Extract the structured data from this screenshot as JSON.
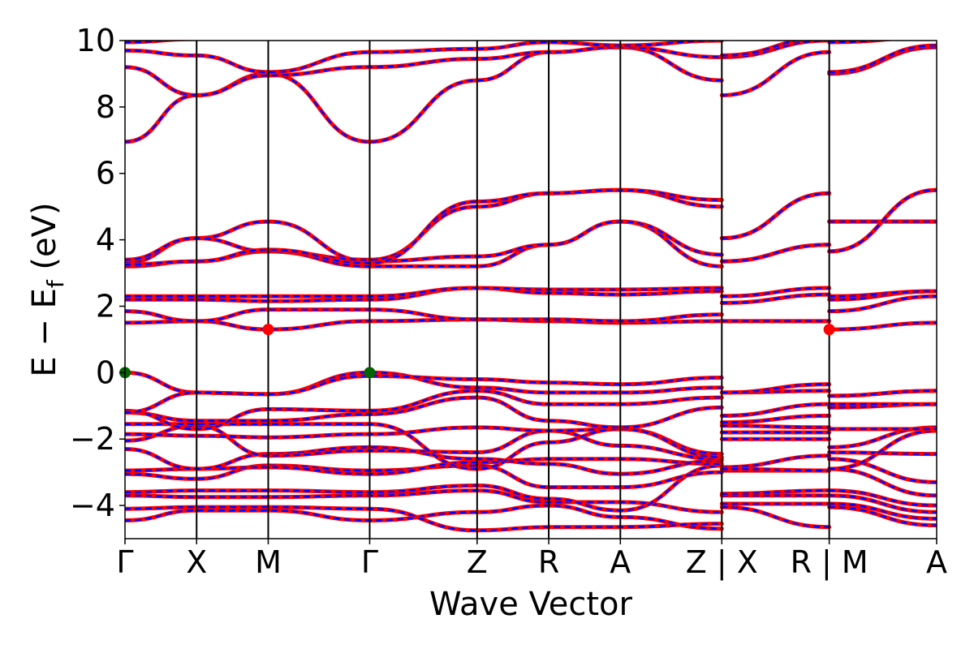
{
  "chart_data": {
    "type": "line",
    "title": "",
    "xlabel": "Wave Vector",
    "ylabel": "E − E",
    "ylabel_subscript": "f",
    "ylabel_unit": "(eV)",
    "ylim": [
      -5,
      10
    ],
    "yticks": [
      {
        "value": 10,
        "label": "10"
      },
      {
        "value": 8,
        "label": "8"
      },
      {
        "value": 6,
        "label": "6"
      },
      {
        "value": 4,
        "label": "4"
      },
      {
        "value": 2,
        "label": "2"
      },
      {
        "value": 0,
        "label": "0"
      },
      {
        "value": -2,
        "label": "−2"
      },
      {
        "value": -4,
        "label": "−4"
      }
    ],
    "kpoints": [
      {
        "x": 0.0,
        "label": "Γ"
      },
      {
        "x": 0.12,
        "label": "X"
      },
      {
        "x": 0.24,
        "label": "M"
      },
      {
        "x": 0.41,
        "label": "Γ"
      },
      {
        "x": 0.59,
        "label": "Z"
      },
      {
        "x": 0.71,
        "label": "R"
      },
      {
        "x": 0.83,
        "label": "A"
      },
      {
        "x": 1.0,
        "label": "Z | X"
      },
      {
        "x": 1.18,
        "label": "R | M"
      },
      {
        "x": 1.36,
        "label": "A"
      }
    ],
    "xlim": [
      0,
      1.36
    ],
    "grid": false,
    "colors": {
      "band_primary": "#ff0000",
      "band_dash": "#0000ff",
      "vbm": "#006400",
      "cbm": "#ff0000"
    },
    "bands": [
      [
        [
          0,
          -4.45
        ],
        [
          0.12,
          -4.15
        ],
        [
          0.24,
          -4.15
        ],
        [
          0.41,
          -4.45
        ],
        [
          0.59,
          -4.2
        ],
        [
          0.71,
          -4.0
        ],
        [
          0.83,
          -4.35
        ],
        [
          1.0,
          -4.7
        ],
        [
          1.0,
          -4.05
        ],
        [
          1.18,
          -4.65
        ],
        [
          1.18,
          -4.05
        ],
        [
          1.36,
          -4.6
        ]
      ],
      [
        [
          0,
          -4.1
        ],
        [
          0.12,
          -4.05
        ],
        [
          0.24,
          -4.05
        ],
        [
          0.41,
          -4.1
        ],
        [
          0.59,
          -4.75
        ],
        [
          0.71,
          -4.65
        ],
        [
          0.83,
          -4.65
        ],
        [
          1.0,
          -4.55
        ],
        [
          1.0,
          -3.95
        ],
        [
          1.18,
          -3.95
        ],
        [
          1.18,
          -3.95
        ],
        [
          1.36,
          -4.4
        ]
      ],
      [
        [
          0,
          -3.7
        ],
        [
          0.12,
          -3.75
        ],
        [
          0.24,
          -3.75
        ],
        [
          0.41,
          -3.7
        ],
        [
          0.59,
          -3.55
        ],
        [
          0.71,
          -3.9
        ],
        [
          0.83,
          -3.9
        ],
        [
          1.0,
          -4.2
        ],
        [
          1.0,
          -3.7
        ],
        [
          1.18,
          -3.7
        ],
        [
          1.18,
          -3.7
        ],
        [
          1.36,
          -4.2
        ]
      ],
      [
        [
          0,
          -3.6
        ],
        [
          0.12,
          -3.55
        ],
        [
          0.24,
          -3.55
        ],
        [
          0.41,
          -3.6
        ],
        [
          0.59,
          -3.4
        ],
        [
          0.71,
          -3.8
        ],
        [
          0.83,
          -4.15
        ],
        [
          1.0,
          -2.8
        ],
        [
          1.0,
          -3.65
        ],
        [
          1.18,
          -3.55
        ],
        [
          1.18,
          -3.55
        ],
        [
          1.36,
          -4.0
        ]
      ],
      [
        [
          0,
          -3.05
        ],
        [
          0.12,
          -3.2
        ],
        [
          0.24,
          -2.8
        ],
        [
          0.41,
          -2.95
        ],
        [
          0.59,
          -2.8
        ],
        [
          0.71,
          -3.45
        ],
        [
          0.83,
          -3.45
        ],
        [
          1.0,
          -3.0
        ],
        [
          1.0,
          -2.95
        ],
        [
          1.18,
          -2.95
        ],
        [
          1.18,
          -2.9
        ],
        [
          1.36,
          -3.7
        ]
      ],
      [
        [
          0,
          -2.95
        ],
        [
          0.12,
          -2.9
        ],
        [
          0.24,
          -2.85
        ],
        [
          0.41,
          -3.05
        ],
        [
          0.59,
          -2.7
        ],
        [
          0.71,
          -2.6
        ],
        [
          0.83,
          -2.6
        ],
        [
          1.0,
          -2.75
        ],
        [
          1.0,
          -2.85
        ],
        [
          1.18,
          -2.5
        ],
        [
          1.18,
          -2.6
        ],
        [
          1.36,
          -3.3
        ]
      ],
      [
        [
          0,
          -2.3
        ],
        [
          0.12,
          -2.9
        ],
        [
          0.24,
          -2.45
        ],
        [
          0.41,
          -2.25
        ],
        [
          0.59,
          -2.6
        ],
        [
          0.71,
          -2.75
        ],
        [
          0.83,
          -3.05
        ],
        [
          1.0,
          -2.65
        ],
        [
          1.0,
          -2.9
        ],
        [
          1.18,
          -2.95
        ],
        [
          1.18,
          -2.4
        ],
        [
          1.36,
          -2.45
        ]
      ],
      [
        [
          0,
          -2.05
        ],
        [
          0.12,
          -1.6
        ],
        [
          0.24,
          -2.5
        ],
        [
          0.41,
          -2.35
        ],
        [
          0.59,
          -2.4
        ],
        [
          0.71,
          -1.75
        ],
        [
          0.83,
          -2.2
        ],
        [
          1.0,
          -2.6
        ],
        [
          1.0,
          -2.0
        ],
        [
          1.18,
          -2.0
        ],
        [
          1.18,
          -2.9
        ],
        [
          1.36,
          -1.75
        ]
      ],
      [
        [
          0,
          -1.85
        ],
        [
          0.12,
          -1.9
        ],
        [
          0.24,
          -1.95
        ],
        [
          0.41,
          -1.85
        ],
        [
          0.59,
          -1.65
        ],
        [
          0.71,
          -1.75
        ],
        [
          0.83,
          -1.7
        ],
        [
          1.0,
          -2.45
        ],
        [
          1.0,
          -1.8
        ],
        [
          1.18,
          -1.8
        ],
        [
          1.18,
          -2.25
        ],
        [
          1.36,
          -1.65
        ]
      ],
      [
        [
          0,
          -1.55
        ],
        [
          0.12,
          -1.55
        ],
        [
          0.24,
          -1.55
        ],
        [
          0.41,
          -1.55
        ],
        [
          0.59,
          -2.9
        ],
        [
          0.71,
          -2.1
        ],
        [
          0.83,
          -1.7
        ],
        [
          1.0,
          -2.55
        ],
        [
          1.0,
          -1.6
        ],
        [
          1.18,
          -1.65
        ],
        [
          1.18,
          -1.7
        ],
        [
          1.36,
          -1.7
        ]
      ],
      [
        [
          0,
          -1.2
        ],
        [
          0.12,
          -1.45
        ],
        [
          0.24,
          -1.45
        ],
        [
          0.41,
          -1.25
        ],
        [
          0.59,
          -0.75
        ],
        [
          0.71,
          -1.45
        ],
        [
          0.83,
          -1.65
        ],
        [
          1.0,
          -1.05
        ],
        [
          1.0,
          -1.5
        ],
        [
          1.18,
          -1.3
        ],
        [
          1.18,
          -1.05
        ],
        [
          1.36,
          -0.95
        ]
      ],
      [
        [
          0,
          -1.15
        ],
        [
          0.12,
          -1.7
        ],
        [
          0.24,
          -1.1
        ],
        [
          0.41,
          -1.15
        ],
        [
          0.59,
          -0.55
        ],
        [
          0.71,
          -0.95
        ],
        [
          0.83,
          -0.95
        ],
        [
          1.0,
          -0.75
        ],
        [
          1.0,
          -1.3
        ],
        [
          1.18,
          -0.95
        ],
        [
          1.18,
          -0.7
        ],
        [
          1.36,
          -0.55
        ]
      ],
      [
        [
          0,
          0.0
        ],
        [
          0.12,
          -0.6
        ],
        [
          0.24,
          -0.65
        ],
        [
          0.41,
          0.0
        ],
        [
          0.59,
          -0.45
        ],
        [
          0.71,
          -0.6
        ],
        [
          0.83,
          -0.6
        ],
        [
          1.0,
          -0.45
        ],
        [
          1.0,
          -0.6
        ],
        [
          1.18,
          -0.55
        ],
        [
          1.18,
          -0.95
        ],
        [
          1.36,
          -0.95
        ]
      ],
      [
        [
          0,
          -1.2
        ],
        [
          0.12,
          -0.6
        ],
        [
          0.24,
          -0.65
        ],
        [
          0.41,
          -0.1
        ],
        [
          0.59,
          -0.2
        ],
        [
          0.71,
          -0.3
        ],
        [
          0.83,
          -0.35
        ],
        [
          1.0,
          -0.15
        ],
        [
          1.0,
          -0.6
        ],
        [
          1.18,
          -0.35
        ],
        [
          1.18,
          -0.7
        ],
        [
          1.36,
          -0.55
        ]
      ],
      [
        [
          0,
          1.5
        ],
        [
          0.12,
          1.55
        ],
        [
          0.24,
          1.3
        ],
        [
          0.41,
          1.55
        ],
        [
          0.59,
          1.6
        ],
        [
          0.71,
          1.55
        ],
        [
          0.83,
          1.5
        ],
        [
          1.0,
          1.55
        ],
        [
          1.0,
          1.55
        ],
        [
          1.18,
          1.55
        ],
        [
          1.18,
          1.3
        ],
        [
          1.36,
          1.5
        ]
      ],
      [
        [
          0,
          1.85
        ],
        [
          0.12,
          1.55
        ],
        [
          0.24,
          1.9
        ],
        [
          0.41,
          1.9
        ],
        [
          0.59,
          1.6
        ],
        [
          0.71,
          1.6
        ],
        [
          0.83,
          1.55
        ],
        [
          1.0,
          1.75
        ],
        [
          1.0,
          1.55
        ],
        [
          1.18,
          1.55
        ],
        [
          1.18,
          1.85
        ],
        [
          1.36,
          2.3
        ]
      ],
      [
        [
          0,
          2.2
        ],
        [
          0.12,
          2.2
        ],
        [
          0.24,
          2.15
        ],
        [
          0.41,
          2.2
        ],
        [
          0.59,
          2.55
        ],
        [
          0.71,
          2.4
        ],
        [
          0.83,
          2.35
        ],
        [
          1.0,
          2.45
        ],
        [
          1.0,
          2.1
        ],
        [
          1.18,
          2.35
        ],
        [
          1.18,
          2.2
        ],
        [
          1.36,
          2.45
        ]
      ],
      [
        [
          0,
          2.3
        ],
        [
          0.12,
          2.3
        ],
        [
          0.24,
          2.3
        ],
        [
          0.41,
          2.3
        ],
        [
          0.59,
          2.55
        ],
        [
          0.71,
          2.5
        ],
        [
          0.83,
          2.5
        ],
        [
          1.0,
          2.55
        ],
        [
          1.0,
          2.3
        ],
        [
          1.18,
          2.55
        ],
        [
          1.18,
          2.3
        ],
        [
          1.36,
          2.45
        ]
      ],
      [
        [
          0,
          3.2
        ],
        [
          0.12,
          3.35
        ],
        [
          0.24,
          3.65
        ],
        [
          0.41,
          3.2
        ],
        [
          0.59,
          3.2
        ],
        [
          0.71,
          3.85
        ],
        [
          0.83,
          4.55
        ],
        [
          1.0,
          3.2
        ],
        [
          1.0,
          3.35
        ],
        [
          1.18,
          3.85
        ],
        [
          1.18,
          3.65
        ],
        [
          1.36,
          5.5
        ]
      ],
      [
        [
          0,
          3.3
        ],
        [
          0.12,
          4.05
        ],
        [
          0.24,
          4.55
        ],
        [
          0.41,
          3.35
        ],
        [
          0.59,
          3.5
        ],
        [
          0.71,
          3.85
        ],
        [
          0.83,
          4.55
        ],
        [
          1.0,
          3.55
        ],
        [
          1.0,
          4.05
        ],
        [
          1.18,
          5.4
        ],
        [
          1.18,
          4.55
        ],
        [
          1.36,
          4.55
        ]
      ],
      [
        [
          0,
          3.4
        ],
        [
          0.12,
          4.05
        ],
        [
          0.24,
          3.65
        ],
        [
          0.41,
          3.4
        ],
        [
          0.59,
          5.0
        ],
        [
          0.71,
          5.4
        ],
        [
          0.83,
          5.5
        ],
        [
          1.0,
          5.0
        ],
        [
          1.0,
          4.05
        ],
        [
          1.18,
          5.4
        ],
        [
          1.18,
          4.55
        ],
        [
          1.36,
          4.55
        ]
      ],
      [
        [
          0,
          3.25
        ],
        [
          0.12,
          3.35
        ],
        [
          0.24,
          3.7
        ],
        [
          0.41,
          3.3
        ],
        [
          0.59,
          5.15
        ],
        [
          0.71,
          5.4
        ],
        [
          0.83,
          5.5
        ],
        [
          1.0,
          5.2
        ],
        [
          1.0,
          3.35
        ],
        [
          1.18,
          3.85
        ],
        [
          1.18,
          3.65
        ],
        [
          1.36,
          5.5
        ]
      ],
      [
        [
          0,
          6.95
        ],
        [
          0.12,
          8.35
        ],
        [
          0.24,
          9.0
        ],
        [
          0.41,
          6.95
        ],
        [
          0.59,
          8.8
        ],
        [
          0.71,
          9.65
        ],
        [
          0.83,
          9.8
        ],
        [
          1.0,
          8.8
        ],
        [
          1.0,
          8.35
        ],
        [
          1.18,
          9.65
        ],
        [
          1.18,
          9.0
        ],
        [
          1.36,
          9.8
        ]
      ],
      [
        [
          0,
          9.2
        ],
        [
          0.12,
          8.35
        ],
        [
          0.24,
          8.95
        ],
        [
          0.41,
          9.2
        ],
        [
          0.59,
          9.45
        ],
        [
          0.71,
          9.65
        ],
        [
          0.83,
          9.8
        ],
        [
          1.0,
          9.5
        ],
        [
          1.0,
          9.5
        ],
        [
          1.18,
          10.0
        ],
        [
          1.18,
          9.05
        ],
        [
          1.36,
          9.85
        ]
      ],
      [
        [
          0,
          9.7
        ],
        [
          0.12,
          9.55
        ],
        [
          0.24,
          9.05
        ],
        [
          0.41,
          9.65
        ],
        [
          0.59,
          9.75
        ],
        [
          0.71,
          9.95
        ],
        [
          0.83,
          9.85
        ],
        [
          1.0,
          10.0
        ],
        [
          1.0,
          9.55
        ],
        [
          1.18,
          10.1
        ],
        [
          1.18,
          9.95
        ],
        [
          1.36,
          10.1
        ]
      ],
      [
        [
          0,
          9.95
        ],
        [
          0.12,
          10.05
        ],
        [
          0.24,
          10.05
        ],
        [
          0.41,
          10.05
        ],
        [
          0.59,
          10.05
        ],
        [
          0.71,
          10.05
        ],
        [
          0.83,
          10.05
        ],
        [
          1.0,
          10.05
        ],
        [
          1.0,
          10.05
        ],
        [
          1.18,
          10.05
        ],
        [
          1.18,
          10.1
        ],
        [
          1.36,
          10.1
        ]
      ]
    ],
    "markers": [
      {
        "x": 0.0,
        "y": 0.0,
        "color": "#006400"
      },
      {
        "x": 0.41,
        "y": 0.0,
        "color": "#006400"
      },
      {
        "x": 0.24,
        "y": 1.3,
        "color": "#ff0000"
      },
      {
        "x": 1.18,
        "y": 1.3,
        "color": "#ff0000"
      }
    ]
  }
}
